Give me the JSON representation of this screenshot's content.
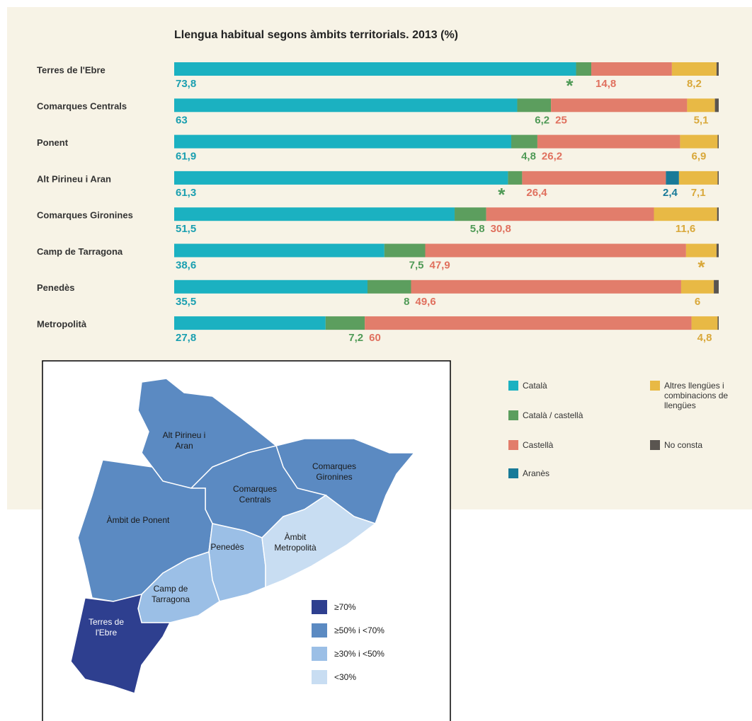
{
  "chart_data": {
    "type": "bar",
    "orientation": "horizontal",
    "stacked": true,
    "title": "Llengua habitual segons àmbits territorials. 2013 (%)",
    "categories": [
      "Terres de l'Ebre",
      "Comarques Centrals",
      "Ponent",
      "Alt Pirineu i Aran",
      "Comarques Gironines",
      "Camp de Tarragona",
      "Penedès",
      "Metropolità"
    ],
    "xlim": [
      0,
      100
    ],
    "series": [
      {
        "name": "Català",
        "color": "#1bb1c1",
        "label_color": "#1a9fb0",
        "values": [
          73.8,
          63,
          61.9,
          61.3,
          51.5,
          38.6,
          35.5,
          27.8
        ],
        "value_labels": [
          "73,8",
          "63",
          "61,9",
          "61,3",
          "51,5",
          "38,6",
          "35,5",
          "27,8"
        ]
      },
      {
        "name": "Català / castellà",
        "color": "#5c9e5e",
        "label_color": "#4f9a56",
        "values": [
          2.8,
          6.2,
          4.8,
          2.6,
          5.8,
          7.5,
          8,
          7.2
        ],
        "value_labels": [
          "*",
          "6,2",
          "4,8",
          "*",
          "5,8",
          "7,5",
          "8",
          "7,2"
        ]
      },
      {
        "name": "Castellà",
        "color": "#e27d6b",
        "label_color": "#e0705e",
        "values": [
          14.8,
          25,
          26.2,
          26.4,
          30.8,
          47.9,
          49.6,
          60
        ],
        "value_labels": [
          "14,8",
          "25",
          "26,2",
          "26,4",
          "30,8",
          "47,9",
          "49,6",
          "60"
        ]
      },
      {
        "name": "Aranès",
        "color": "#187a98",
        "label_color": "#177a99",
        "values": [
          0,
          0,
          0,
          2.4,
          0,
          0,
          0,
          0
        ],
        "value_labels": [
          null,
          null,
          null,
          "2,4",
          null,
          null,
          null,
          null
        ]
      },
      {
        "name": "Altres llengües i combinacions de llengües",
        "color": "#e8b945",
        "label_color": "#d9a83a",
        "values": [
          8.2,
          5.1,
          6.9,
          7.1,
          11.6,
          5.6,
          6,
          4.8
        ],
        "value_labels": [
          "8,2",
          "5,1",
          "6,9",
          "7,1",
          "11,6",
          "*",
          "6",
          "4,8"
        ]
      },
      {
        "name": "No consta",
        "color": "#5a5550",
        "values": [
          0.4,
          0.7,
          0.2,
          0.2,
          0.3,
          0.4,
          0.9,
          0.2
        ]
      }
    ]
  },
  "map": {
    "regions": [
      {
        "label": "Alt Pirineu i Aran",
        "color": "#5b8ac2"
      },
      {
        "label": "Comarques Gironines",
        "color": "#5b8ac2"
      },
      {
        "label": "Comarques Centrals",
        "color": "#5b8ac2"
      },
      {
        "label": "Àmbit de Ponent",
        "color": "#5b8ac2"
      },
      {
        "label": "Penedès",
        "color": "#9bbfe6"
      },
      {
        "label": "Àmbit Metropolità",
        "color": "#c8ddf2"
      },
      {
        "label": "Camp de Tarragona",
        "color": "#9bbfe6"
      },
      {
        "label": "Terres de l'Ebre",
        "color": "#2e3f8f"
      }
    ],
    "legend": [
      {
        "label": "≥70%",
        "color": "#2e3f8f"
      },
      {
        "label": "≥50% i <70%",
        "color": "#5b8ac2"
      },
      {
        "label": "≥30% i <50%",
        "color": "#9bbfe6"
      },
      {
        "label": "<30%",
        "color": "#c8ddf2"
      }
    ]
  }
}
